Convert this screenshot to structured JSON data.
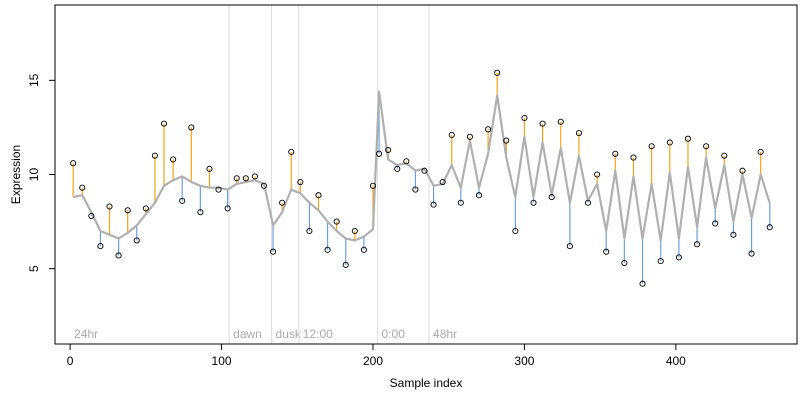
{
  "chart_data": {
    "type": "line",
    "title": "",
    "xlabel": "Sample index",
    "ylabel": "Expression",
    "xlim": [
      -10,
      480
    ],
    "ylim": [
      1,
      19
    ],
    "x_ticks": [
      0,
      100,
      200,
      300,
      400
    ],
    "y_ticks": [
      5,
      10,
      15
    ],
    "grid": false,
    "legend": "none",
    "colors": {
      "fit_line": "#b0b0b0",
      "residual_positive": "#f4a21c",
      "residual_negative": "#6f9ee0",
      "point_edge": "#000000",
      "marker_line": "#dddddd",
      "marker_text": "#aaaaaa"
    },
    "markers": [
      {
        "label": "24hr",
        "x": 0
      },
      {
        "label": "dawn",
        "x": 105
      },
      {
        "label": "dusk",
        "x": 133
      },
      {
        "label": "12:00",
        "x": 151
      },
      {
        "label": "0:00",
        "x": 203
      },
      {
        "label": "48hr",
        "x": 237
      }
    ],
    "series": [
      {
        "name": "",
        "role": "fitted",
        "x": [
          2,
          8,
          14,
          20,
          26,
          32,
          38,
          44,
          50,
          56,
          62,
          68,
          74,
          80,
          86,
          92,
          98,
          104,
          110,
          116,
          122,
          128,
          134,
          140,
          146,
          152,
          158,
          164,
          170,
          176,
          182,
          188,
          194,
          200,
          204,
          210,
          216,
          222,
          228,
          234,
          240,
          246,
          252,
          258,
          264,
          270,
          276,
          282,
          288,
          294,
          300,
          306,
          312,
          318,
          324,
          330,
          336,
          342,
          348,
          354,
          360,
          366,
          372,
          378,
          384,
          390,
          396,
          402,
          408,
          414,
          420,
          426,
          432,
          438,
          444,
          450,
          456,
          462
        ],
        "values": [
          8.8,
          8.9,
          8.0,
          7.0,
          6.8,
          6.6,
          6.9,
          7.3,
          7.9,
          8.5,
          9.4,
          9.7,
          9.9,
          9.6,
          9.4,
          9.3,
          9.3,
          9.2,
          9.5,
          9.6,
          9.7,
          9.5,
          7.3,
          8.0,
          9.2,
          9.0,
          8.5,
          8.1,
          7.5,
          7.0,
          6.6,
          6.5,
          6.7,
          7.1,
          14.4,
          10.8,
          10.5,
          10.6,
          10.2,
          10.3,
          9.4,
          9.5,
          10.5,
          9.3,
          11.8,
          9.3,
          11.1,
          14.2,
          10.9,
          8.8,
          12.0,
          8.8,
          11.7,
          8.9,
          11.4,
          8.5,
          11.0,
          8.6,
          9.5,
          7.0,
          10.2,
          6.6,
          9.9,
          6.6,
          9.5,
          6.5,
          10.1,
          6.6,
          10.4,
          7.2,
          10.9,
          8.2,
          10.5,
          7.5,
          10.0,
          7.7,
          10.0,
          8.5
        ]
      },
      {
        "name": "",
        "role": "observed",
        "x": [
          2,
          8,
          14,
          20,
          26,
          32,
          38,
          44,
          50,
          56,
          62,
          68,
          74,
          80,
          86,
          92,
          98,
          104,
          110,
          116,
          122,
          128,
          134,
          140,
          146,
          152,
          158,
          164,
          170,
          176,
          182,
          188,
          194,
          200,
          204,
          210,
          216,
          222,
          228,
          234,
          240,
          246,
          252,
          258,
          264,
          270,
          276,
          282,
          288,
          294,
          300,
          306,
          312,
          318,
          324,
          330,
          336,
          342,
          348,
          354,
          360,
          366,
          372,
          378,
          384,
          390,
          396,
          402,
          408,
          414,
          420,
          426,
          432,
          438,
          444,
          450,
          456,
          462
        ],
        "values": [
          10.6,
          9.3,
          7.8,
          6.2,
          8.3,
          5.7,
          8.1,
          6.5,
          8.2,
          11.0,
          12.7,
          10.8,
          8.6,
          12.5,
          8.0,
          10.3,
          9.2,
          8.2,
          9.8,
          9.8,
          9.9,
          9.4,
          5.9,
          8.5,
          11.2,
          9.6,
          7.0,
          8.9,
          6.0,
          7.5,
          5.2,
          7.0,
          6.0,
          9.4,
          11.1,
          11.3,
          10.3,
          10.7,
          9.2,
          10.2,
          8.4,
          9.6,
          12.1,
          8.5,
          12.0,
          8.9,
          12.4,
          15.4,
          11.8,
          7.0,
          13.0,
          8.5,
          12.7,
          8.8,
          12.8,
          6.2,
          12.2,
          8.5,
          10.0,
          5.9,
          11.1,
          5.3,
          10.9,
          4.2,
          11.5,
          5.4,
          11.7,
          5.6,
          11.9,
          6.3,
          11.5,
          7.4,
          11.0,
          6.8,
          10.2,
          5.8,
          11.2,
          7.2
        ]
      }
    ]
  }
}
